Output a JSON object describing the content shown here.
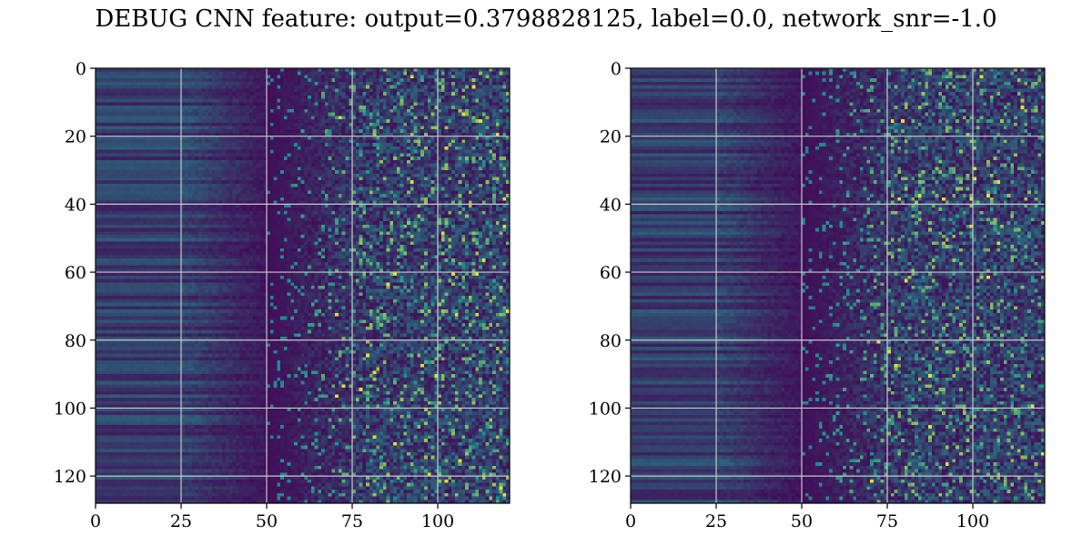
{
  "figure": {
    "title": "DEBUG CNN feature: output=0.3798828125, label=0.0, network_snr=-1.0"
  },
  "chart_data": [
    {
      "type": "heatmap",
      "title": "",
      "xlabel": "",
      "ylabel": "",
      "xlim": [
        0,
        121
      ],
      "ylim": [
        128,
        0
      ],
      "rows": 128,
      "cols": 121,
      "colormap": "viridis",
      "grid": true,
      "x_ticks": [
        0,
        25,
        50,
        75,
        100
      ],
      "y_ticks": [
        0,
        20,
        40,
        60,
        80,
        100,
        120
      ],
      "seed": 1
    },
    {
      "type": "heatmap",
      "title": "",
      "xlabel": "",
      "ylabel": "",
      "xlim": [
        0,
        121
      ],
      "ylim": [
        128,
        0
      ],
      "rows": 128,
      "cols": 121,
      "colormap": "viridis",
      "grid": true,
      "x_ticks": [
        0,
        25,
        50,
        75,
        100
      ],
      "y_ticks": [
        0,
        20,
        40,
        60,
        80,
        100,
        120
      ],
      "seed": 2
    }
  ],
  "colors": {
    "cmap_low": "#440154",
    "cmap_mid": "#21918c",
    "cmap_high": "#fde725",
    "grid": "#c8c8c8",
    "axis": "#000000"
  }
}
